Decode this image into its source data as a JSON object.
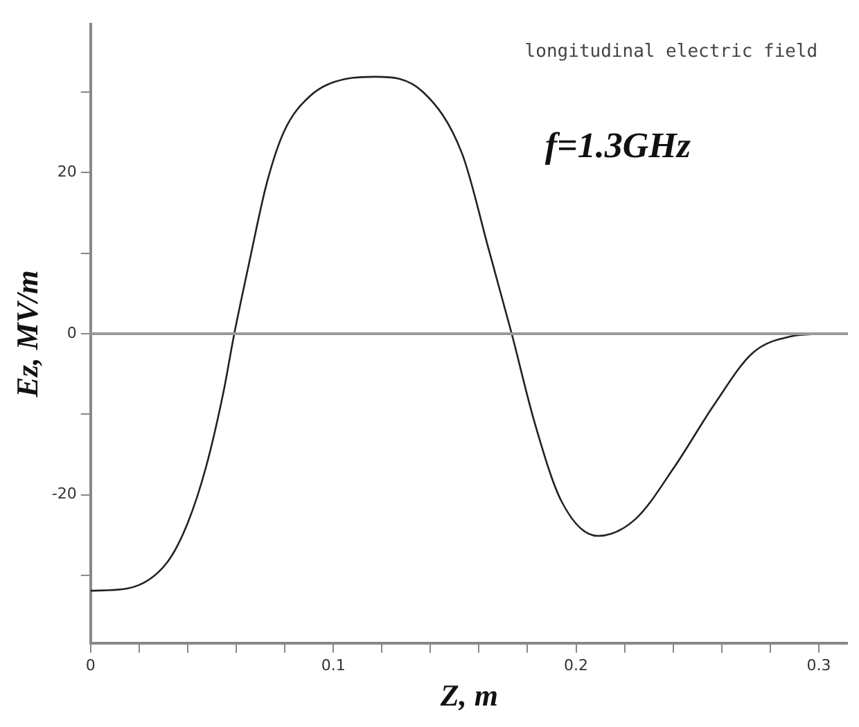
{
  "chart_data": {
    "type": "line",
    "xlabel": "Z, m",
    "ylabel": "Ez, MV/m",
    "annotations": [
      "longitudinal electric field",
      "f=1.3GHz"
    ],
    "x": [
      0,
      0.0154,
      0.0315,
      0.04,
      0.0476,
      0.0547,
      0.0592,
      0.0654,
      0.0726,
      0.0797,
      0.0904,
      0.1047,
      0.1172,
      0.137,
      0.153,
      0.164,
      0.1735,
      0.183,
      0.194,
      0.209,
      0.2245,
      0.2406,
      0.2567,
      0.2727,
      0.289,
      0.301
    ],
    "series": [
      {
        "color": "#222222",
        "values": [
          -31.9,
          -31.6,
          -28.4,
          -23.5,
          -16.5,
          -7.3,
          0,
          8.9,
          18.7,
          25.1,
          29.5,
          31.6,
          31.9,
          30.0,
          22.4,
          10.5,
          0,
          -11.1,
          -20.8,
          -25.1,
          -23.0,
          -16.5,
          -8.9,
          -2.4,
          -0.3,
          0
        ]
      }
    ],
    "xlim": [
      0,
      0.312
    ],
    "ylim": [
      -38.4,
      38.4
    ],
    "xticks": [
      0,
      {
        "value": 0.02,
        "label": null
      },
      {
        "value": 0.04,
        "label": null
      },
      {
        "value": 0.06,
        "label": null
      },
      {
        "value": 0.08,
        "label": null
      },
      0.1,
      {
        "value": 0.12,
        "label": null
      },
      {
        "value": 0.14,
        "label": null
      },
      {
        "value": 0.16,
        "label": null
      },
      {
        "value": 0.18,
        "label": null
      },
      0.2,
      {
        "value": 0.22,
        "label": null
      },
      {
        "value": 0.24,
        "label": null
      },
      {
        "value": 0.26,
        "label": null
      },
      {
        "value": 0.28,
        "label": null
      },
      0.3
    ],
    "yticks": [
      {
        "value": -30,
        "label": null
      },
      -20,
      {
        "value": -10,
        "label": null
      },
      0,
      {
        "value": 10,
        "label": null
      },
      20,
      {
        "value": 30,
        "label": null
      }
    ],
    "ref_lines": [
      {
        "axis": "y",
        "value": 0,
        "color": "#999999"
      }
    ],
    "grid": false,
    "legend": false,
    "marker": "none",
    "line_style": "solid"
  }
}
